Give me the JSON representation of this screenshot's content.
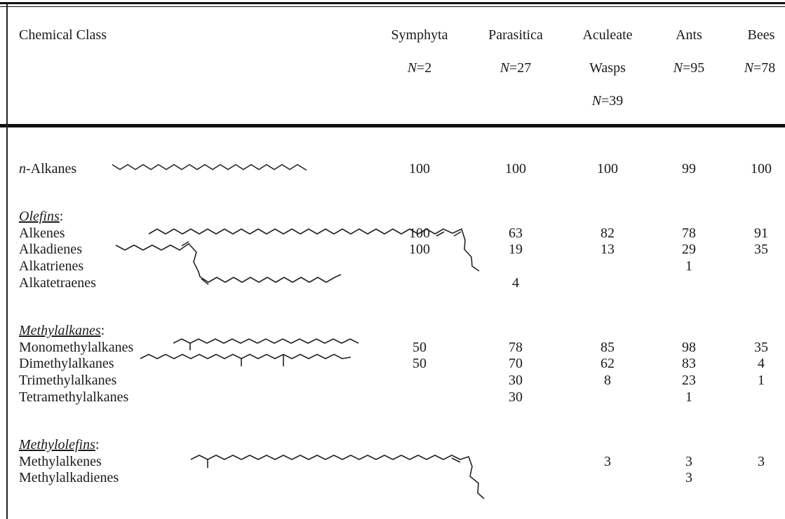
{
  "columns": {
    "chemical_class": "Chemical Class",
    "groups": [
      {
        "name": "Symphyta",
        "n_prefix": "N",
        "n_value": "=2"
      },
      {
        "name": "Parasitica",
        "n_prefix": "N",
        "n_value": "=27"
      },
      {
        "name": "Aculeate",
        "name2": "Wasps",
        "n_prefix": "N",
        "n_value": "=39"
      },
      {
        "name": "Ants",
        "n_prefix": "N",
        "n_value": "=95"
      },
      {
        "name": "Bees",
        "n_prefix": "N",
        "n_value": "=78"
      }
    ]
  },
  "rows": {
    "n_alkanes": {
      "prefix": "n",
      "label": "-Alkanes",
      "values": [
        "100",
        "100",
        "100",
        "99",
        "100"
      ]
    },
    "olefins": {
      "heading": "Olefins",
      "items": [
        {
          "label": "Alkenes",
          "values": [
            "100",
            "63",
            "82",
            "78",
            "91"
          ]
        },
        {
          "label": "Alkadienes",
          "values": [
            "100",
            "19",
            "13",
            "29",
            "35"
          ]
        },
        {
          "label": "Alkatrienes",
          "values": [
            "",
            "",
            "",
            "1",
            ""
          ]
        },
        {
          "label": "Alkatetraenes",
          "values": [
            "",
            "4",
            "",
            "",
            ""
          ]
        }
      ]
    },
    "methylalkanes": {
      "heading": "Methylalkanes",
      "items": [
        {
          "label": "Monomethylalkanes",
          "values": [
            "50",
            "78",
            "85",
            "98",
            "35"
          ]
        },
        {
          "label": "Dimethylalkanes",
          "values": [
            "50",
            "70",
            "62",
            "83",
            "4"
          ]
        },
        {
          "label": "Trimethylalkanes",
          "values": [
            "",
            "30",
            "8",
            "23",
            "1"
          ]
        },
        {
          "label": "Tetramethylalkanes",
          "values": [
            "",
            "30",
            "",
            "1",
            ""
          ]
        }
      ]
    },
    "methylolefins": {
      "heading": "Methylolefins",
      "items": [
        {
          "label": "Methylalkenes",
          "values": [
            "",
            "",
            "3",
            "3",
            "3"
          ]
        },
        {
          "label": "Methylalkadienes",
          "values": [
            "",
            "",
            "",
            "3",
            ""
          ]
        }
      ]
    }
  },
  "colon": ":"
}
